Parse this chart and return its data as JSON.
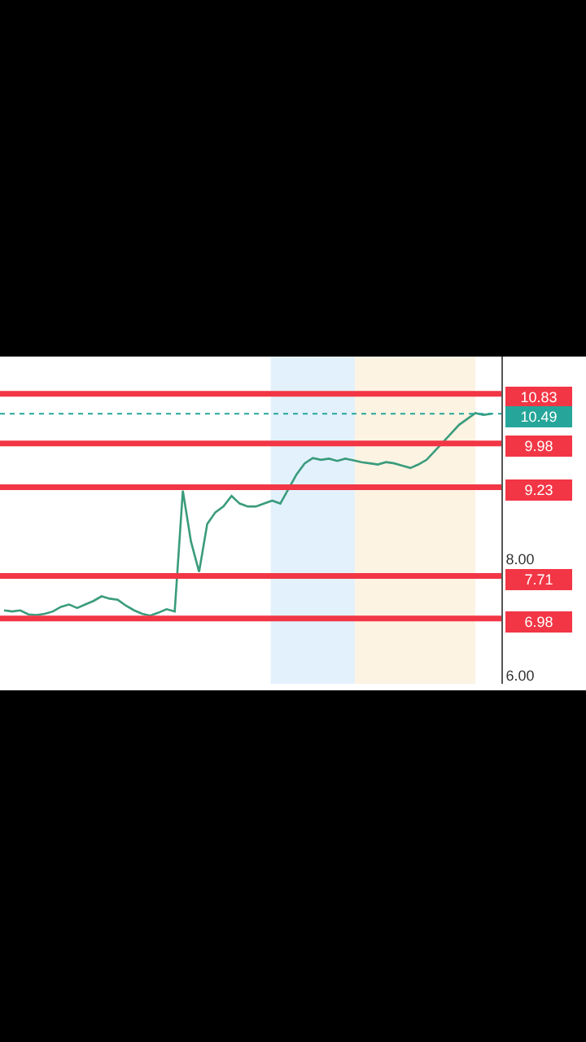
{
  "chart_data": {
    "type": "line",
    "categories": [
      null,
      null,
      null,
      null,
      null,
      null,
      null,
      null,
      null,
      null,
      null,
      null,
      null,
      null,
      null,
      null,
      null,
      null,
      null,
      null,
      null,
      null,
      null,
      null,
      null,
      null,
      null,
      null,
      null,
      null,
      null,
      null,
      null,
      null,
      null,
      null,
      null,
      null,
      null,
      null,
      null,
      null,
      null,
      null,
      null,
      null,
      null,
      null,
      null,
      null,
      null,
      null,
      null,
      null,
      null,
      null,
      null,
      null,
      null,
      null,
      null
    ],
    "series": [
      {
        "color": "#3a9c7c",
        "values": [
          7.12,
          7.1,
          7.12,
          7.05,
          7.04,
          7.06,
          7.1,
          7.18,
          7.22,
          7.16,
          7.22,
          7.28,
          7.36,
          7.32,
          7.3,
          7.2,
          7.12,
          7.06,
          7.03,
          7.08,
          7.14,
          7.1,
          9.17,
          8.3,
          7.78,
          8.6,
          8.8,
          8.9,
          9.08,
          8.95,
          8.9,
          8.9,
          8.95,
          9.0,
          8.95,
          9.2,
          9.45,
          9.64,
          9.73,
          9.7,
          9.72,
          9.68,
          9.72,
          9.69,
          9.66,
          9.64,
          9.62,
          9.66,
          9.64,
          9.6,
          9.56,
          9.62,
          9.7,
          9.85,
          10.0,
          10.15,
          10.3,
          10.4,
          10.5,
          10.47,
          10.49
        ]
      }
    ],
    "ylim": [
      5.86,
      11.47
    ],
    "yticks": [
      {
        "value": 6,
        "label": "6.00"
      },
      {
        "value": 8,
        "label": "8.00"
      }
    ],
    "ref_lines": [
      {
        "axis": "y",
        "value": 10.83,
        "label": "10.83",
        "color": "#f23645",
        "line_style": "solid"
      },
      {
        "axis": "y",
        "value": 10.49,
        "label": "10.49",
        "color": "#26a69a",
        "line_style": "dotted"
      },
      {
        "axis": "y",
        "value": 9.98,
        "label": "9.98",
        "color": "#f23645",
        "line_style": "solid"
      },
      {
        "axis": "y",
        "value": 9.23,
        "label": "9.23",
        "color": "#f23645",
        "line_style": "solid"
      },
      {
        "axis": "y",
        "value": 7.71,
        "label": "7.71",
        "color": "#f23645",
        "line_style": "solid"
      },
      {
        "axis": "y",
        "value": 6.98,
        "label": "6.98",
        "color": "#f23645",
        "line_style": "solid"
      }
    ],
    "grid": false,
    "marker": "none"
  }
}
